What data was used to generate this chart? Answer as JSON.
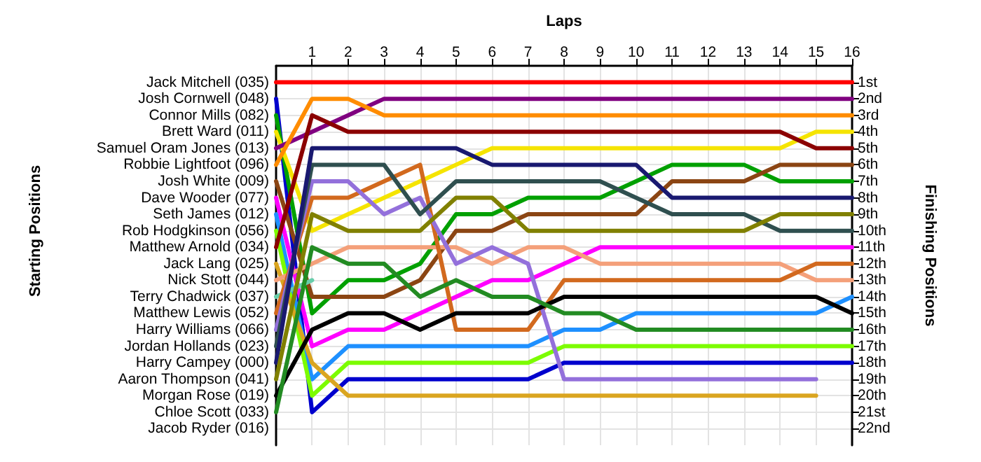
{
  "chart_data": {
    "type": "line",
    "xlabel": "Laps",
    "ylabel": "Finishing Positions",
    "annotations": [
      "Starting Positions",
      "Jacob Ryder (016)"
    ],
    "xlim": [
      0,
      16
    ],
    "xticks": [
      1,
      2,
      3,
      4,
      5,
      6,
      7,
      8,
      9,
      10,
      11,
      12,
      13,
      14,
      15,
      16
    ],
    "x": [
      0,
      1,
      2,
      3,
      4,
      5,
      6,
      7,
      8,
      9,
      10,
      11,
      12,
      13,
      14,
      15,
      16
    ],
    "ylim": [
      23,
      0
    ],
    "yticks": [
      {
        "value": 1,
        "label": "1st"
      },
      {
        "value": 2,
        "label": "2nd"
      },
      {
        "value": 3,
        "label": "3rd"
      },
      {
        "value": 4,
        "label": "4th"
      },
      {
        "value": 5,
        "label": "5th"
      },
      {
        "value": 6,
        "label": "6th"
      },
      {
        "value": 7,
        "label": "7th"
      },
      {
        "value": 8,
        "label": "8th"
      },
      {
        "value": 9,
        "label": "9th"
      },
      {
        "value": 10,
        "label": "10th"
      },
      {
        "value": 11,
        "label": "11th"
      },
      {
        "value": 12,
        "label": "12th"
      },
      {
        "value": 13,
        "label": "13th"
      },
      {
        "value": 14,
        "label": "14th"
      },
      {
        "value": 15,
        "label": "15th"
      },
      {
        "value": 16,
        "label": "16th"
      },
      {
        "value": 17,
        "label": "17th"
      },
      {
        "value": 18,
        "label": "18th"
      },
      {
        "value": 19,
        "label": "19th"
      },
      {
        "value": 20,
        "label": "20th"
      },
      {
        "value": 21,
        "label": "21st"
      },
      {
        "value": 22,
        "label": "22nd"
      }
    ],
    "grid": true,
    "legend": "left",
    "line_style": "solid",
    "series": [
      {
        "name": "Jack Mitchell (035)",
        "color": "#ff0000",
        "values": [
          1,
          1,
          1,
          1,
          1,
          1,
          1,
          1,
          1,
          1,
          1,
          1,
          1,
          1,
          1,
          1,
          1
        ]
      },
      {
        "name": "Josh Cornwell (048)",
        "color": "#0000cd",
        "values": [
          2,
          21,
          19,
          19,
          19,
          19,
          19,
          19,
          18,
          18,
          18,
          18,
          18,
          18,
          18,
          18,
          18
        ]
      },
      {
        "name": "Connor Mills (082)",
        "color": "#00a000",
        "values": [
          3,
          15,
          13,
          13,
          12,
          9,
          9,
          8,
          8,
          8,
          7,
          6,
          6,
          6,
          7,
          7,
          7
        ]
      },
      {
        "name": "Brett Ward (011)",
        "color": "#f5e400",
        "values": [
          4,
          10,
          9,
          8,
          7,
          6,
          5,
          5,
          5,
          5,
          5,
          5,
          5,
          5,
          5,
          4,
          4
        ]
      },
      {
        "name": "Samuel Oram Jones (013)",
        "color": "#800080",
        "values": [
          5,
          4,
          3,
          2,
          2,
          2,
          2,
          2,
          2,
          2,
          2,
          2,
          2,
          2,
          2,
          2,
          2
        ]
      },
      {
        "name": "Robbie Lightfoot (096)",
        "color": "#ff8c00",
        "values": [
          6,
          2,
          2,
          3,
          3,
          3,
          3,
          3,
          3,
          3,
          3,
          3,
          3,
          3,
          3,
          3,
          3
        ]
      },
      {
        "name": "Josh White (009)",
        "color": "#8b4513",
        "values": [
          7,
          14,
          14,
          14,
          13,
          10,
          10,
          9,
          9,
          9,
          9,
          7,
          7,
          7,
          6,
          6,
          6
        ]
      },
      {
        "name": "Dave Wooder (077)",
        "color": "#ff00ff",
        "values": [
          8,
          17,
          16,
          16,
          15,
          14,
          13,
          13,
          12,
          11,
          11,
          11,
          11,
          11,
          11,
          11,
          11
        ]
      },
      {
        "name": "Seth James (012)",
        "color": "#1e90ff",
        "values": [
          9,
          19,
          17,
          17,
          17,
          17,
          17,
          17,
          16,
          16,
          15,
          15,
          15,
          15,
          15,
          15,
          14
        ]
      },
      {
        "name": "Rob Hodgkinson (056)",
        "color": "#7cfc00",
        "values": [
          10,
          20,
          18,
          18,
          18,
          18,
          18,
          18,
          17,
          17,
          17,
          17,
          17,
          17,
          17,
          17,
          17
        ]
      },
      {
        "name": "Matthew Arnold (034)",
        "color": "#8b0000",
        "values": [
          11,
          3,
          4,
          4,
          4,
          4,
          4,
          4,
          4,
          4,
          4,
          4,
          4,
          4,
          4,
          5,
          5
        ]
      },
      {
        "name": "Jack Lang (025)",
        "color": "#daa520",
        "values": [
          12,
          18,
          20,
          20,
          20,
          20,
          20,
          20,
          20,
          20,
          20,
          20,
          20,
          20,
          20,
          20,
          null
        ]
      },
      {
        "name": "Nick Stott (044)",
        "color": "#f4a07a",
        "values": [
          13,
          12,
          11,
          11,
          11,
          11,
          12,
          11,
          11,
          12,
          12,
          12,
          12,
          12,
          12,
          13,
          13
        ]
      },
      {
        "name": "Terry Chadwick (037)",
        "color": "#66cdaa",
        "values": [
          14,
          13,
          null,
          null,
          null,
          null,
          null,
          null,
          null,
          null,
          null,
          null,
          null,
          null,
          null,
          null,
          null
        ]
      },
      {
        "name": "Matthew Lewis (052)",
        "color": "#d2691e",
        "values": [
          15,
          8,
          8,
          7,
          6,
          16,
          16,
          16,
          13,
          13,
          13,
          13,
          13,
          13,
          13,
          12,
          12
        ]
      },
      {
        "name": "Harry Williams (066)",
        "color": "#9370db",
        "values": [
          16,
          7,
          7,
          9,
          8,
          12,
          11,
          12,
          19,
          19,
          19,
          19,
          19,
          19,
          19,
          19,
          null
        ]
      },
      {
        "name": "Jordan Hollands (023)",
        "color": "#2f4f4f",
        "values": [
          17,
          6,
          6,
          6,
          9,
          7,
          7,
          7,
          7,
          7,
          8,
          9,
          9,
          9,
          10,
          10,
          10
        ]
      },
      {
        "name": "Harry Campey (000)",
        "color": "#191970",
        "values": [
          18,
          5,
          5,
          5,
          5,
          5,
          6,
          6,
          6,
          6,
          6,
          8,
          8,
          8,
          8,
          8,
          8
        ]
      },
      {
        "name": "Aaron Thompson (041)",
        "color": "#808000",
        "values": [
          19,
          9,
          10,
          10,
          10,
          8,
          8,
          10,
          10,
          10,
          10,
          10,
          10,
          10,
          9,
          9,
          9
        ]
      },
      {
        "name": "Morgan Rose (019)",
        "color": "#000000",
        "values": [
          20,
          16,
          15,
          15,
          16,
          15,
          15,
          15,
          14,
          14,
          14,
          14,
          14,
          14,
          14,
          14,
          15
        ]
      },
      {
        "name": "Chloe Scott (033)",
        "color": "#228b22",
        "values": [
          21,
          11,
          12,
          12,
          14,
          13,
          14,
          14,
          15,
          15,
          16,
          16,
          16,
          16,
          16,
          16,
          16
        ]
      }
    ]
  }
}
